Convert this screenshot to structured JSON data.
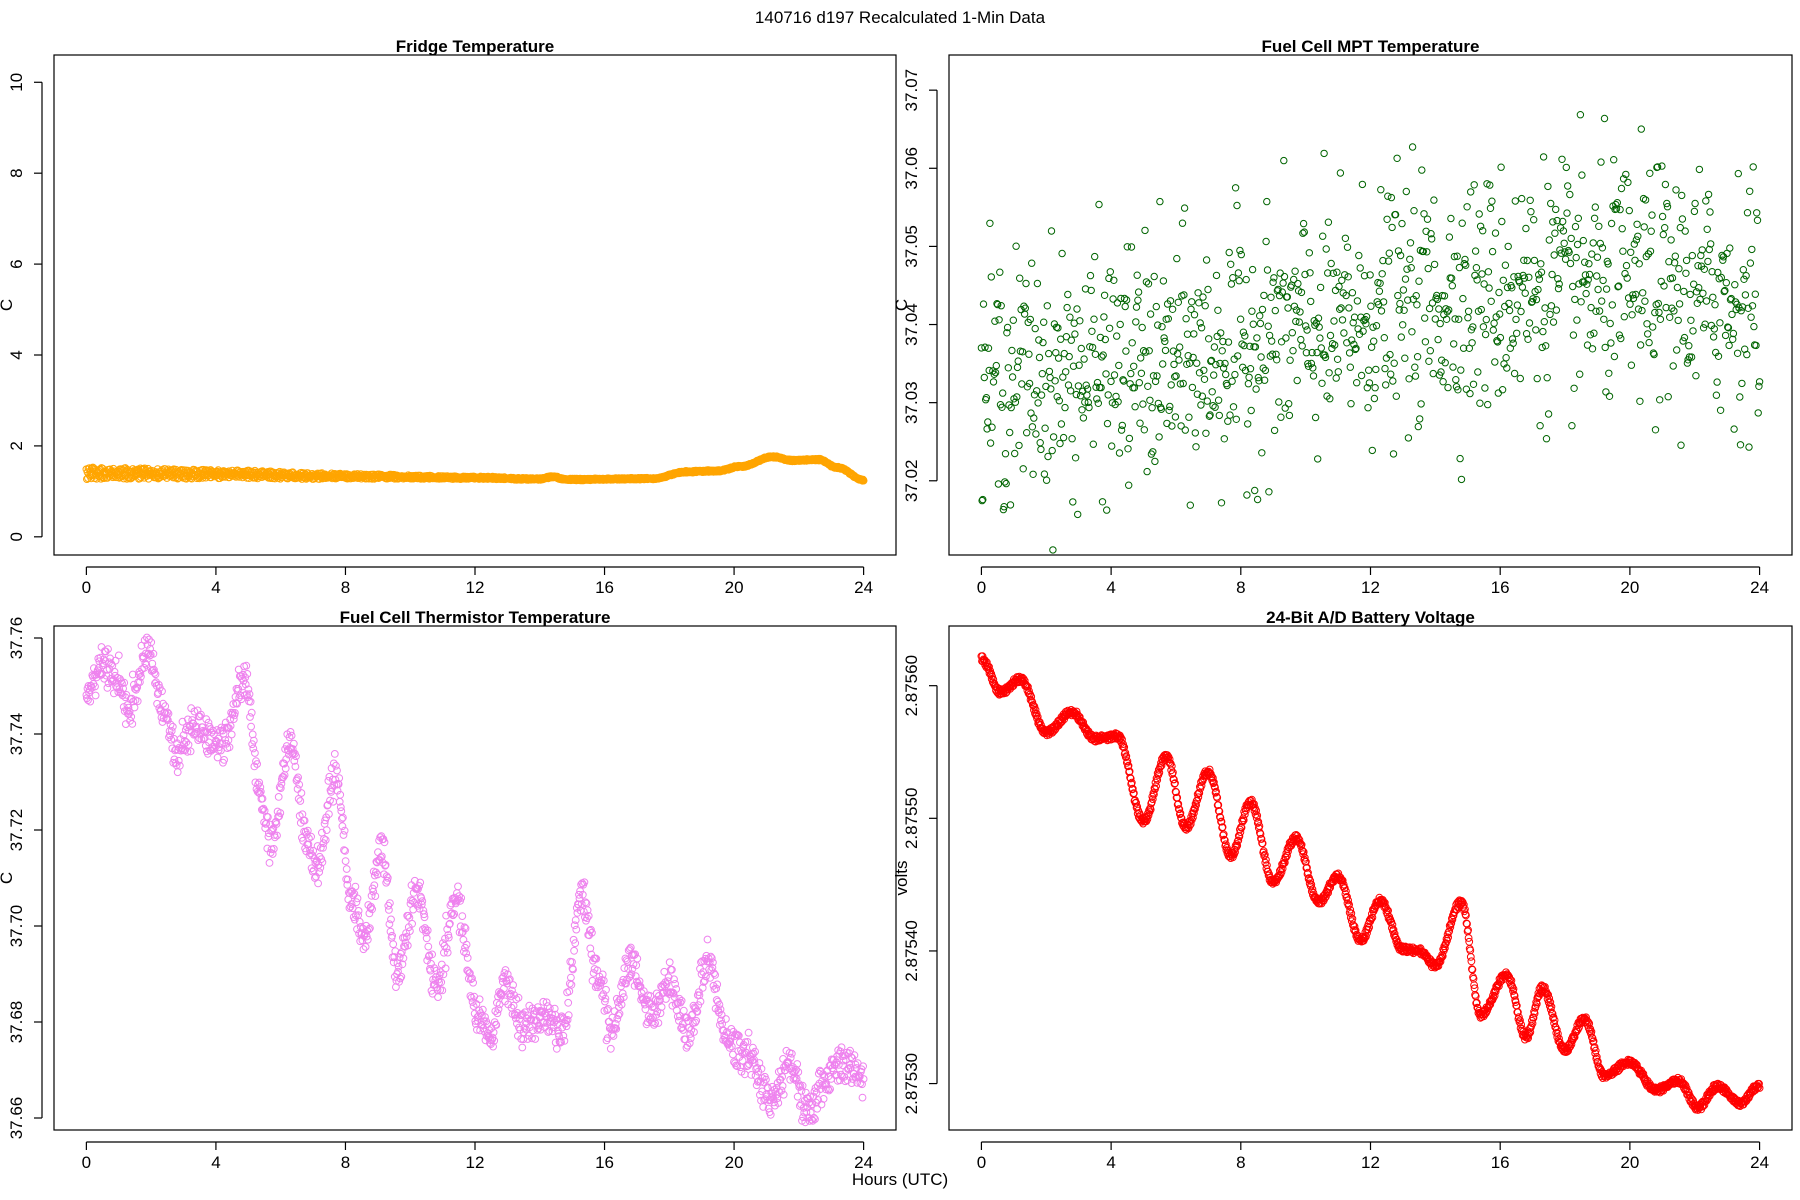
{
  "suptitle": "140716   d197   Recalculated 1-Min Data",
  "xlabel_common": "Hours (UTC)",
  "chart_data": [
    {
      "type": "scatter",
      "title": "Fridge Temperature",
      "ylabel": "C",
      "xlim": [
        -1,
        25
      ],
      "ylim": [
        -0.4,
        10.6
      ],
      "xticks": [
        0,
        4,
        8,
        12,
        16,
        20,
        24
      ],
      "xtick_labels": [
        "0",
        "4",
        "8",
        "12",
        "16",
        "20",
        "24"
      ],
      "yticks": [
        0,
        2,
        4,
        6,
        8,
        10
      ],
      "ytick_labels": [
        "0",
        "2",
        "4",
        "6",
        "8",
        "10"
      ],
      "color": "#FFA500",
      "kind": "points",
      "key_points": [
        [
          0,
          1.4
        ],
        [
          4,
          1.38
        ],
        [
          8,
          1.33
        ],
        [
          12,
          1.3
        ],
        [
          14,
          1.27
        ],
        [
          14.4,
          1.32
        ],
        [
          14.8,
          1.26
        ],
        [
          17.5,
          1.28
        ],
        [
          18.5,
          1.43
        ],
        [
          19.5,
          1.45
        ],
        [
          20.2,
          1.55
        ],
        [
          21.2,
          1.76
        ],
        [
          21.8,
          1.68
        ],
        [
          22.6,
          1.7
        ],
        [
          23.2,
          1.52
        ],
        [
          24,
          1.25
        ]
      ],
      "spread": [
        [
          0,
          0.13
        ],
        [
          6,
          0.08
        ],
        [
          10,
          0.04
        ],
        [
          14,
          0.02
        ],
        [
          24,
          0.02
        ]
      ],
      "noise": 0.0
    },
    {
      "type": "scatter",
      "title": "Fuel Cell MPT Temperature",
      "ylabel": "C",
      "xlim": [
        -1,
        25
      ],
      "ylim": [
        37.0105,
        37.0745
      ],
      "xticks": [
        0,
        4,
        8,
        12,
        16,
        20,
        24
      ],
      "xtick_labels": [
        "0",
        "4",
        "8",
        "12",
        "16",
        "20",
        "24"
      ],
      "yticks": [
        37.02,
        37.03,
        37.04,
        37.05,
        37.06,
        37.07
      ],
      "ytick_labels": [
        "37.02",
        "37.03",
        "37.04",
        "37.05",
        "37.06",
        "37.07"
      ],
      "color": "#006400",
      "kind": "scatter",
      "key_points": [
        [
          0,
          37.033
        ],
        [
          6,
          37.035
        ],
        [
          10,
          37.039
        ],
        [
          14,
          37.043
        ],
        [
          18,
          37.045
        ],
        [
          20,
          37.045
        ],
        [
          24,
          37.043
        ]
      ],
      "spread": [
        [
          0,
          0
        ],
        [
          24,
          0
        ]
      ],
      "noise": 0.0085
    },
    {
      "type": "scatter",
      "title": "Fuel Cell Thermistor Temperature",
      "ylabel": "C",
      "xlim": [
        -1,
        25
      ],
      "ylim": [
        37.6575,
        37.7625
      ],
      "xticks": [
        0,
        4,
        8,
        12,
        16,
        20,
        24
      ],
      "xtick_labels": [
        "0",
        "4",
        "8",
        "12",
        "16",
        "20",
        "24"
      ],
      "yticks": [
        37.66,
        37.68,
        37.7,
        37.72,
        37.74,
        37.76
      ],
      "ytick_labels": [
        "37.66",
        "37.68",
        "37.70",
        "37.72",
        "37.74",
        "37.76"
      ],
      "color": "#EE82EE",
      "kind": "points",
      "key_points": [
        [
          0,
          37.748
        ],
        [
          0.5,
          37.755
        ],
        [
          1,
          37.751
        ],
        [
          1.3,
          37.745
        ],
        [
          1.9,
          37.758
        ],
        [
          2.4,
          37.745
        ],
        [
          2.8,
          37.735
        ],
        [
          3.3,
          37.741
        ],
        [
          4.2,
          37.738
        ],
        [
          4.9,
          37.752
        ],
        [
          5.4,
          37.726
        ],
        [
          5.7,
          37.718
        ],
        [
          6.3,
          37.738
        ],
        [
          6.8,
          37.718
        ],
        [
          7.1,
          37.712
        ],
        [
          7.7,
          37.732
        ],
        [
          8.2,
          37.705
        ],
        [
          8.6,
          37.698
        ],
        [
          9.1,
          37.716
        ],
        [
          9.6,
          37.69
        ],
        [
          10.2,
          37.707
        ],
        [
          10.8,
          37.688
        ],
        [
          11.4,
          37.705
        ],
        [
          12.1,
          37.682
        ],
        [
          12.5,
          37.676
        ],
        [
          12.9,
          37.688
        ],
        [
          13.5,
          37.679
        ],
        [
          14.1,
          37.681
        ],
        [
          14.7,
          37.678
        ],
        [
          15.3,
          37.707
        ],
        [
          15.8,
          37.689
        ],
        [
          16.2,
          37.678
        ],
        [
          16.8,
          37.692
        ],
        [
          17.4,
          37.682
        ],
        [
          18.0,
          37.688
        ],
        [
          18.6,
          37.678
        ],
        [
          19.2,
          37.693
        ],
        [
          19.8,
          37.676
        ],
        [
          20.4,
          37.673
        ],
        [
          21.2,
          37.664
        ],
        [
          21.7,
          37.671
        ],
        [
          22.3,
          37.662
        ],
        [
          22.8,
          37.668
        ],
        [
          23.4,
          37.672
        ],
        [
          24.0,
          37.668
        ]
      ],
      "spread": [
        [
          0,
          0.003
        ],
        [
          24,
          0.003
        ]
      ],
      "noise": 0.0012
    },
    {
      "type": "scatter",
      "title": "24-Bit A/D Battery Voltage",
      "ylabel": "volts",
      "xlim": [
        -1,
        25
      ],
      "ylim": [
        2.875265,
        2.875645
      ],
      "xticks": [
        0,
        4,
        8,
        12,
        16,
        20,
        24
      ],
      "xtick_labels": [
        "0",
        "4",
        "8",
        "12",
        "16",
        "20",
        "24"
      ],
      "yticks": [
        2.8753,
        2.8754,
        2.8755,
        2.8756
      ],
      "ytick_labels": [
        "2.87530",
        "2.87540",
        "2.87550",
        "2.87560"
      ],
      "color": "#FF0000",
      "kind": "points",
      "key_points": [
        [
          0,
          2.87562
        ],
        [
          0.6,
          2.875595
        ],
        [
          1.2,
          2.875605
        ],
        [
          2.0,
          2.875565
        ],
        [
          2.8,
          2.87558
        ],
        [
          3.5,
          2.87556
        ],
        [
          4.2,
          2.875562
        ],
        [
          5.0,
          2.875498
        ],
        [
          5.7,
          2.875547
        ],
        [
          6.3,
          2.875493
        ],
        [
          7.0,
          2.875535
        ],
        [
          7.7,
          2.875472
        ],
        [
          8.3,
          2.875512
        ],
        [
          9.0,
          2.875452
        ],
        [
          9.7,
          2.875485
        ],
        [
          10.4,
          2.875437
        ],
        [
          11.0,
          2.875456
        ],
        [
          11.7,
          2.875408
        ],
        [
          12.3,
          2.875438
        ],
        [
          13.0,
          2.875401
        ],
        [
          13.5,
          2.8754
        ],
        [
          14.0,
          2.875389
        ],
        [
          14.8,
          2.875437
        ],
        [
          15.4,
          2.875352
        ],
        [
          16.2,
          2.875382
        ],
        [
          16.8,
          2.875335
        ],
        [
          17.3,
          2.875372
        ],
        [
          18.0,
          2.875325
        ],
        [
          18.6,
          2.875349
        ],
        [
          19.2,
          2.875306
        ],
        [
          20.0,
          2.875316
        ],
        [
          20.8,
          2.875295
        ],
        [
          21.5,
          2.875302
        ],
        [
          22.1,
          2.875282
        ],
        [
          22.7,
          2.875298
        ],
        [
          23.4,
          2.875285
        ],
        [
          24.0,
          2.875299
        ]
      ],
      "spread": [
        [
          0,
          2.5e-06
        ],
        [
          24,
          2.5e-06
        ]
      ],
      "noise": 0.0
    }
  ]
}
